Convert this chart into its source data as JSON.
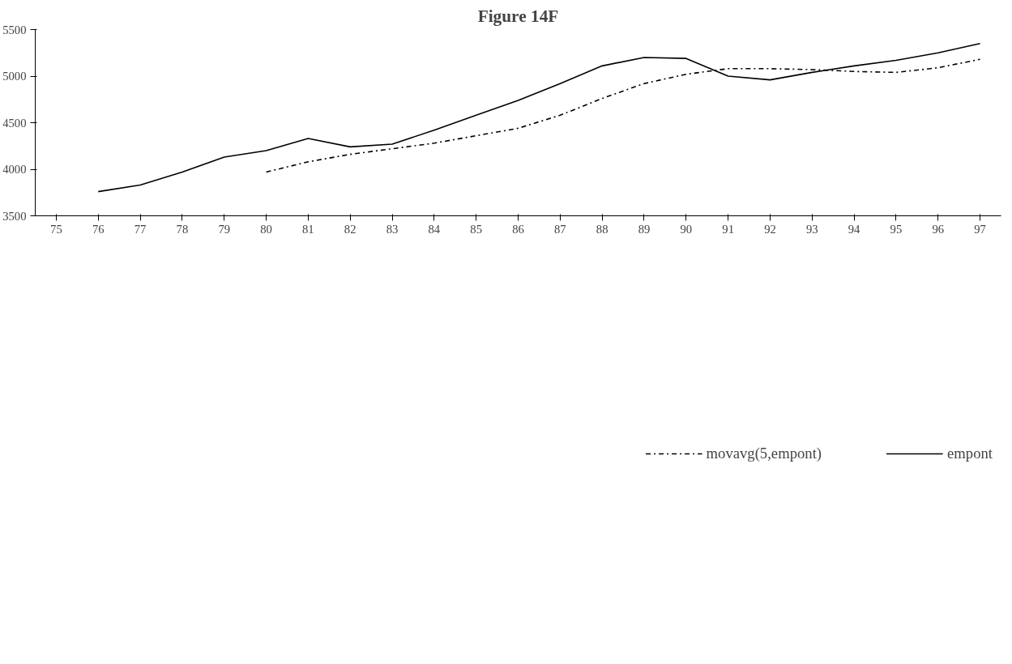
{
  "chart_data": {
    "type": "line",
    "title": "Figure 14F",
    "categories": [
      "75",
      "76",
      "77",
      "78",
      "79",
      "80",
      "81",
      "82",
      "83",
      "84",
      "85",
      "86",
      "87",
      "88",
      "89",
      "90",
      "91",
      "92",
      "93",
      "94",
      "95",
      "96",
      "97"
    ],
    "series": [
      {
        "name": "movavg(5,empont)",
        "color": "#000000",
        "line_style": "dashdot",
        "values": [
          null,
          null,
          null,
          null,
          null,
          3970,
          4080,
          4160,
          4220,
          4280,
          4360,
          4440,
          4580,
          4760,
          4920,
          5020,
          5080,
          5080,
          5070,
          5050,
          5040,
          5090,
          5180
        ]
      },
      {
        "name": "empont",
        "color": "#000000",
        "line_style": "solid",
        "values": [
          null,
          3760,
          3830,
          3970,
          4130,
          4200,
          4330,
          4240,
          4270,
          4420,
          4580,
          4740,
          4920,
          5110,
          5200,
          5190,
          5000,
          4960,
          5040,
          5110,
          5170,
          5250,
          5350
        ]
      }
    ],
    "ylim": [
      3500,
      5500
    ],
    "yticks": [
      3500,
      4000,
      4500,
      5000,
      5500
    ],
    "grid": false,
    "legend": "bottom",
    "marker": "none"
  }
}
